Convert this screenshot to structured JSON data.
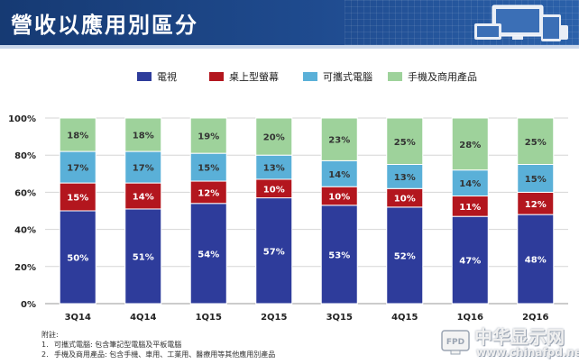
{
  "page": {
    "title": "營收以應用別區分"
  },
  "chart_data": {
    "type": "bar",
    "stacked": true,
    "categories": [
      "3Q14",
      "4Q14",
      "1Q15",
      "2Q15",
      "3Q15",
      "4Q15",
      "1Q16",
      "2Q16"
    ],
    "y_ticks": [
      "0%",
      "20%",
      "40%",
      "60%",
      "80%",
      "100%"
    ],
    "ylim": [
      0,
      100
    ],
    "grid": true,
    "legend_position": "top",
    "series": [
      {
        "name": "電視",
        "color": "#2e3c9b",
        "values": [
          50,
          51,
          54,
          57,
          53,
          52,
          47,
          48
        ],
        "labels": [
          "50%",
          "51%",
          "54%",
          "57%",
          "53%",
          "52%",
          "47%",
          "48%"
        ]
      },
      {
        "name": "桌上型螢幕",
        "color": "#b3161e",
        "values": [
          15,
          14,
          12,
          10,
          10,
          10,
          11,
          12
        ],
        "labels": [
          "15%",
          "14%",
          "12%",
          "10%",
          "10%",
          "10%",
          "11%",
          "12%"
        ]
      },
      {
        "name": "可攜式電腦",
        "color": "#5ab0d8",
        "values": [
          17,
          17,
          15,
          13,
          14,
          13,
          14,
          15
        ],
        "labels": [
          "17%",
          "17%",
          "15%",
          "13%",
          "14%",
          "13%",
          "14%",
          "15%"
        ]
      },
      {
        "name": "手機及商用產品",
        "color": "#9ed29b",
        "values": [
          18,
          18,
          19,
          20,
          23,
          25,
          28,
          25
        ],
        "labels": [
          "18%",
          "18%",
          "19%",
          "20%",
          "23%",
          "25%",
          "28%",
          "25%"
        ]
      }
    ]
  },
  "footnotes": {
    "heading": "附註:",
    "items": [
      {
        "num": "1.",
        "text": "可攜式電腦: 包含筆記型電腦及平板電腦"
      },
      {
        "num": "2.",
        "text": "手機及商用產品: 包含手機、車用、工業用、醫療用等其他應用別產品"
      }
    ]
  },
  "watermark": {
    "logo_text": "FPD",
    "main": "中华显示网",
    "sub": "www.chinafpd.net"
  }
}
